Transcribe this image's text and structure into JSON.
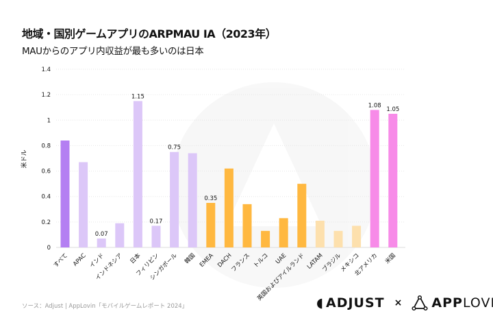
{
  "title": "地域・国別ゲームアプリのARPMAU IA（2023年）",
  "subtitle": "MAUからのアプリ内収益が最も多いのは日本",
  "source": "ソース：Adjust | AppLovin「モバイルゲームレポート 2024」",
  "logos": {
    "adjust": "ADJUST",
    "separator": "×",
    "applovin_bold": "APP",
    "applovin_light": "LOVIN"
  },
  "chart_data": {
    "type": "bar",
    "title": "地域・国別ゲームアプリのARPMAU IA（2023年）",
    "ylabel": "米ドル",
    "xlabel": "",
    "ylim": [
      0,
      1.4
    ],
    "yticks": [
      0,
      0.2,
      0.4,
      0.6,
      0.8,
      1,
      1.2,
      1.4
    ],
    "ytick_labels": [
      "0",
      "0.2",
      "0.4",
      "0.6",
      "0.8",
      "1",
      "1.2",
      "1.4"
    ],
    "grid": true,
    "categories": [
      "すべて",
      "APAC",
      "インド",
      "インドネシア",
      "日本",
      "フィリピン",
      "シンガポール",
      "韓国",
      "EMEA",
      "DACH",
      "フランス",
      "トルコ",
      "UAE",
      "英国およびアイルランド",
      "LATAM",
      "ブラジル",
      "メキシコ",
      "北アメリカ",
      "米国"
    ],
    "values": [
      0.84,
      0.67,
      0.07,
      0.19,
      1.15,
      0.17,
      0.75,
      0.74,
      0.35,
      0.62,
      0.34,
      0.13,
      0.23,
      0.5,
      0.21,
      0.13,
      0.17,
      1.08,
      1.05
    ],
    "data_labels": [
      "",
      "",
      "0.07",
      "",
      "1.15",
      "0.17",
      "0.75",
      "",
      "0.35",
      "",
      "",
      "",
      "",
      "",
      "",
      "",
      "",
      "1.08",
      "1.05"
    ],
    "colors": [
      "#b47ff2",
      "#dcc7f8",
      "#dcc7f8",
      "#dcc7f8",
      "#dcc7f8",
      "#dcc7f8",
      "#dcc7f8",
      "#dcc7f8",
      "#ffb840",
      "#ffb840",
      "#ffb840",
      "#ffb840",
      "#ffb840",
      "#ffb840",
      "#fde0ad",
      "#fde0ad",
      "#fde0ad",
      "#f78be8",
      "#f78be8"
    ]
  }
}
